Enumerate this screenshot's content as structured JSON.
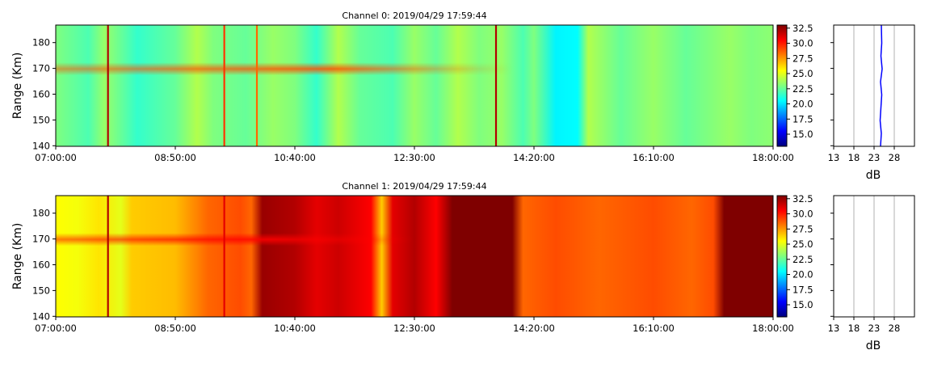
{
  "colors": {
    "colormap": [
      "#00007f",
      "#0000ff",
      "#007fff",
      "#00ffff",
      "#7fff7f",
      "#ffff00",
      "#ff7f00",
      "#ff0000",
      "#7f0000"
    ],
    "profile_line": "#0000ff",
    "grid": "#b0b0b0",
    "axis": "#000000"
  },
  "chart_data": [
    {
      "type": "heatmap",
      "title": "Channel 0: 2019/04/29 17:59:44",
      "ylabel": "Range (Km)",
      "xlabel": "",
      "x_ticks": [
        "07:00:00",
        "08:50:00",
        "10:40:00",
        "12:30:00",
        "14:20:00",
        "16:10:00",
        "18:00:00"
      ],
      "x_range": [
        "07:00:00",
        "18:00:00"
      ],
      "y_ticks": [
        140,
        150,
        160,
        170,
        180
      ],
      "ylim": [
        140,
        187
      ],
      "colorbar": {
        "ticks": [
          "15.0",
          "17.5",
          "20.0",
          "22.5",
          "25.0",
          "27.5",
          "30.0",
          "32.5"
        ],
        "range": [
          13.5,
          33.5
        ]
      },
      "background_db_by_time": [
        [
          "07:00:00",
          23.5
        ],
        [
          "07:30:00",
          22.5
        ],
        [
          "07:45:00",
          24.0
        ],
        [
          "08:15:00",
          22.0
        ],
        [
          "08:50:00",
          23.0
        ],
        [
          "09:10:00",
          24.5
        ],
        [
          "09:25:00",
          23.5
        ],
        [
          "09:55:00",
          23.0
        ],
        [
          "10:20:00",
          24.0
        ],
        [
          "10:40:00",
          23.5
        ],
        [
          "11:00:00",
          22.0
        ],
        [
          "11:20:00",
          24.5
        ],
        [
          "11:40:00",
          23.0
        ],
        [
          "12:10:00",
          22.5
        ],
        [
          "12:30:00",
          24.0
        ],
        [
          "12:50:00",
          23.0
        ],
        [
          "13:10:00",
          24.5
        ],
        [
          "13:30:00",
          23.5
        ],
        [
          "13:50:00",
          24.0
        ],
        [
          "14:10:00",
          22.5
        ],
        [
          "14:20:00",
          23.5
        ],
        [
          "14:40:00",
          20.8
        ],
        [
          "15:00:00",
          21.0
        ],
        [
          "15:10:00",
          24.5
        ],
        [
          "15:40:00",
          23.0
        ],
        [
          "16:10:00",
          24.0
        ],
        [
          "16:40:00",
          23.0
        ],
        [
          "17:00:00",
          23.5
        ],
        [
          "17:20:00",
          24.0
        ],
        [
          "17:40:00",
          23.5
        ],
        [
          "18:00:00",
          23.8
        ]
      ],
      "echo_layer": {
        "range_km": 170,
        "peak_db": 29.5,
        "start": "07:00:00",
        "end": "14:00:00"
      },
      "spikes": [
        {
          "time": "07:48:00",
          "db": 32.5
        },
        {
          "time": "09:35:00",
          "db": 30.0
        },
        {
          "time": "13:45:00",
          "db": 32.5
        },
        {
          "time": "10:05:00",
          "db": 29.0
        }
      ],
      "side_profile": {
        "xlabel": "dB",
        "x_ticks": [
          13,
          18,
          23,
          28
        ],
        "xlim": [
          13,
          33
        ],
        "grid": true,
        "points": [
          [
            24.6,
            140
          ],
          [
            24.8,
            145
          ],
          [
            24.5,
            150
          ],
          [
            24.7,
            155
          ],
          [
            24.9,
            160
          ],
          [
            24.6,
            165
          ],
          [
            25.0,
            170
          ],
          [
            24.7,
            175
          ],
          [
            24.9,
            180
          ],
          [
            24.8,
            187
          ]
        ]
      }
    },
    {
      "type": "heatmap",
      "title": "Channel 1: 2019/04/29 17:59:44",
      "ylabel": "Range (Km)",
      "xlabel": "",
      "x_ticks": [
        "07:00:00",
        "08:50:00",
        "10:40:00",
        "12:30:00",
        "14:20:00",
        "16:10:00",
        "18:00:00"
      ],
      "x_range": [
        "07:00:00",
        "18:00:00"
      ],
      "y_ticks": [
        140,
        150,
        160,
        170,
        180
      ],
      "ylim": [
        140,
        187
      ],
      "colorbar": {
        "ticks": [
          "15.0",
          "17.5",
          "20.0",
          "22.5",
          "25.0",
          "27.5",
          "30.0",
          "32.5"
        ],
        "range": [
          13.5,
          33.5
        ]
      },
      "background_db_by_time": [
        [
          "07:00:00",
          26.0
        ],
        [
          "07:20:00",
          25.8
        ],
        [
          "07:40:00",
          26.5
        ],
        [
          "08:00:00",
          25.5
        ],
        [
          "08:10:00",
          27.0
        ],
        [
          "08:50:00",
          27.3
        ],
        [
          "09:20:00",
          29.0
        ],
        [
          "09:50:00",
          29.5
        ],
        [
          "10:00:00",
          29.0
        ],
        [
          "10:10:00",
          33.0
        ],
        [
          "10:40:00",
          32.5
        ],
        [
          "11:00:00",
          31.5
        ],
        [
          "11:20:00",
          32.0
        ],
        [
          "11:50:00",
          31.0
        ],
        [
          "12:00:00",
          27.0
        ],
        [
          "12:10:00",
          31.5
        ],
        [
          "12:30:00",
          32.5
        ],
        [
          "12:50:00",
          31.0
        ],
        [
          "13:05:00",
          34.0
        ],
        [
          "13:30:00",
          34.0
        ],
        [
          "14:00:00",
          34.0
        ],
        [
          "14:10:00",
          29.0
        ],
        [
          "14:40:00",
          29.5
        ],
        [
          "15:20:00",
          29.0
        ],
        [
          "16:10:00",
          29.5
        ],
        [
          "16:45:00",
          29.0
        ],
        [
          "17:05:00",
          29.5
        ],
        [
          "17:15:00",
          34.0
        ],
        [
          "17:40:00",
          34.0
        ],
        [
          "18:00:00",
          34.0
        ]
      ],
      "echo_layer": {
        "range_km": 170,
        "peak_db": 31.0,
        "start": "07:00:00",
        "end": "12:30:00"
      },
      "spikes": [
        {
          "time": "07:48:00",
          "db": 32.5
        },
        {
          "time": "09:35:00",
          "db": 31.5
        }
      ],
      "side_profile": {
        "xlabel": "dB",
        "x_ticks": [
          13,
          18,
          23,
          28
        ],
        "xlim": [
          13,
          33
        ],
        "grid": true,
        "points": []
      }
    }
  ]
}
